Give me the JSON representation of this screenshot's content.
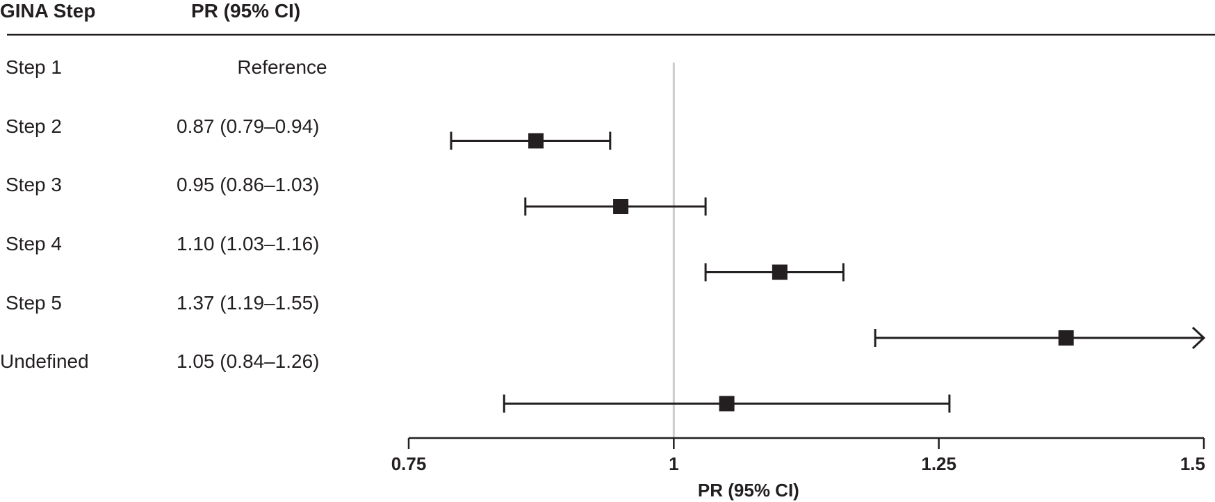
{
  "header": {
    "col1": "GINA Step",
    "col2": "PR (95% CI)"
  },
  "rows": [
    {
      "label": "Step 1",
      "pr_text": "Reference"
    },
    {
      "label": "Step 2",
      "pr_text": "0.87 (0.79–0.94)"
    },
    {
      "label": "Step 3",
      "pr_text": "0.95 (0.86–1.03)"
    },
    {
      "label": "Step 4",
      "pr_text": "1.10 (1.03–1.16)"
    },
    {
      "label": "Step 5",
      "pr_text": "1.37 (1.19–1.55)"
    },
    {
      "label": "Undefined",
      "pr_text": "1.05 (0.84–1.26)"
    }
  ],
  "chart_data": {
    "type": "forest",
    "xlabel": "PR (95% CI)",
    "xlim": [
      0.75,
      1.5
    ],
    "xticks": [
      "0.75",
      "1",
      "1.25",
      "1.5"
    ],
    "reference_line": 1,
    "categories": [
      "Step 1",
      "Step 2",
      "Step 3",
      "Step 4",
      "Step 5",
      "Undefined"
    ],
    "series": [
      {
        "points": [
          {
            "category": "Step 1",
            "estimate": null,
            "lower": null,
            "upper": null,
            "reference": true
          },
          {
            "category": "Step 2",
            "estimate": 0.87,
            "lower": 0.79,
            "upper": 0.94
          },
          {
            "category": "Step 3",
            "estimate": 0.95,
            "lower": 0.86,
            "upper": 1.03
          },
          {
            "category": "Step 4",
            "estimate": 1.1,
            "lower": 1.03,
            "upper": 1.16
          },
          {
            "category": "Step 5",
            "estimate": 1.37,
            "lower": 1.19,
            "upper": 1.55,
            "upper_truncated": true
          },
          {
            "category": "Undefined",
            "estimate": 1.05,
            "lower": 0.84,
            "upper": 1.26
          }
        ]
      }
    ],
    "colors": {
      "ink": "#231f20",
      "reference_line": "#cccccc"
    }
  }
}
